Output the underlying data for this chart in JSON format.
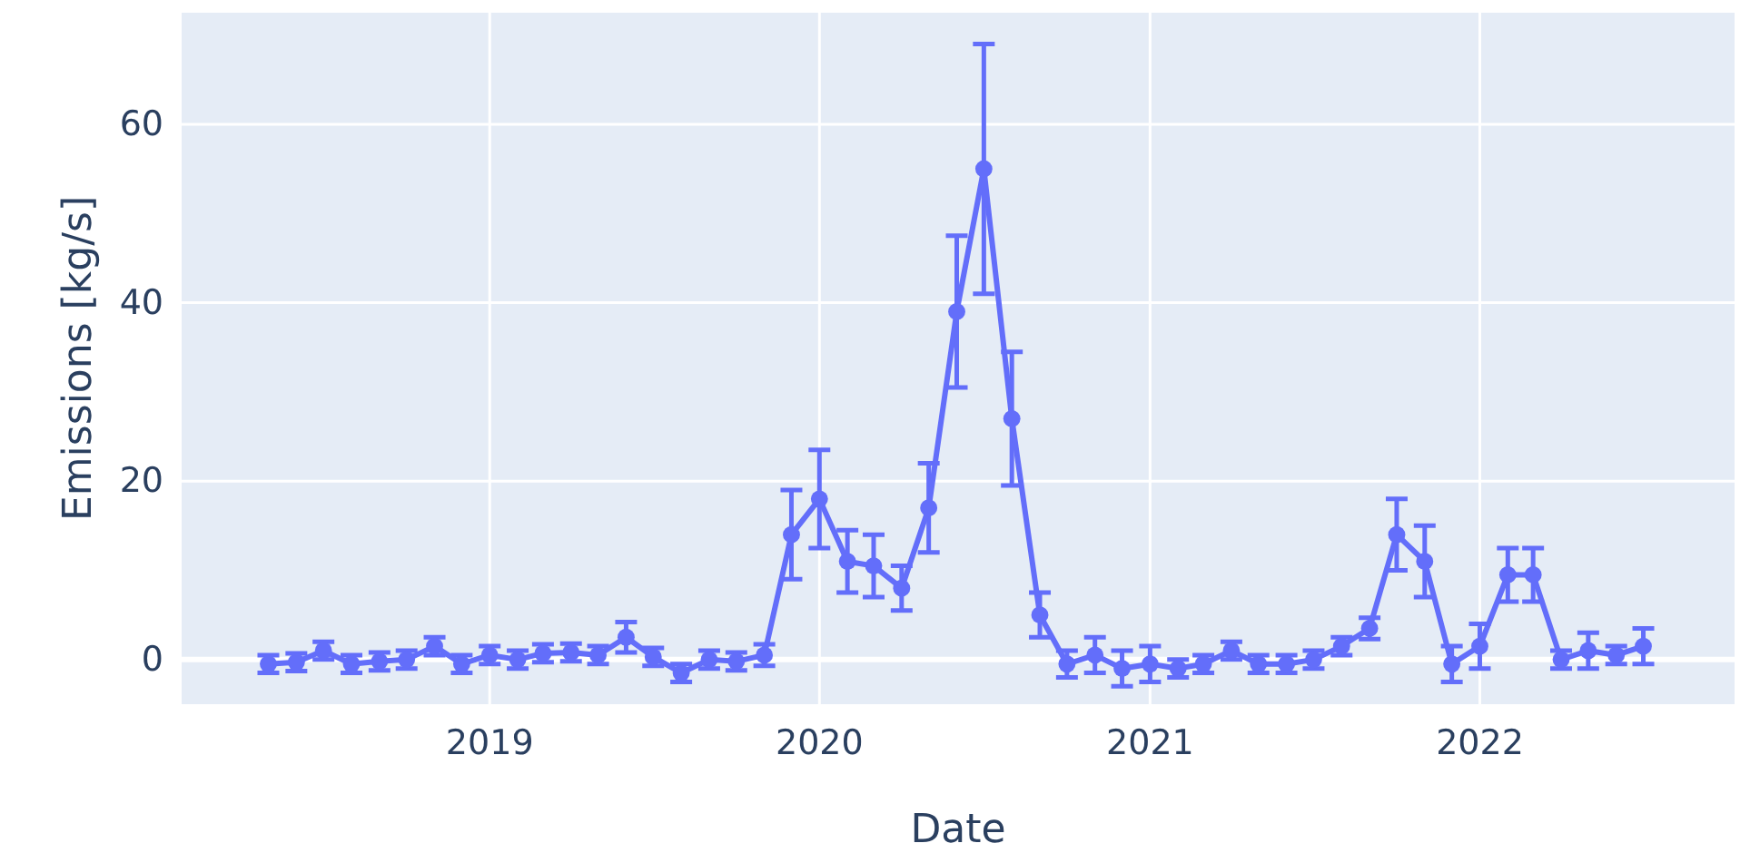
{
  "chart_data": {
    "type": "line",
    "xlabel": "Date",
    "ylabel": "Emissions [kg/s]",
    "marker": "circle",
    "line_style": "solid",
    "grid": true,
    "x": [
      "2018-05",
      "2018-06",
      "2018-07",
      "2018-08",
      "2018-09",
      "2018-10",
      "2018-11",
      "2018-12",
      "2019-01",
      "2019-02",
      "2019-03",
      "2019-04",
      "2019-05",
      "2019-06",
      "2019-07",
      "2019-08",
      "2019-09",
      "2019-10",
      "2019-11",
      "2019-12",
      "2020-01",
      "2020-02",
      "2020-03",
      "2020-04",
      "2020-05",
      "2020-06",
      "2020-07",
      "2020-08",
      "2020-09",
      "2020-10",
      "2020-11",
      "2020-12",
      "2021-01",
      "2021-02",
      "2021-03",
      "2021-04",
      "2021-05",
      "2021-06",
      "2021-07",
      "2021-08",
      "2021-09",
      "2021-10",
      "2021-11",
      "2021-12",
      "2022-01",
      "2022-02",
      "2022-03",
      "2022-04",
      "2022-05",
      "2022-06",
      "2022-07"
    ],
    "xlim": [
      "2018-01-25",
      "2022-10-10"
    ],
    "xticks": [
      {
        "value": "2019-01-01",
        "label": "2019"
      },
      {
        "value": "2020-01-01",
        "label": "2020"
      },
      {
        "value": "2021-01-01",
        "label": "2021"
      },
      {
        "value": "2022-01-01",
        "label": "2022"
      }
    ],
    "ylim": [
      -5,
      72.5
    ],
    "yticks": [
      0,
      20,
      40,
      60
    ],
    "series": [
      {
        "color": "#636efa",
        "values": [
          -0.5,
          -0.3,
          1,
          -0.5,
          -0.2,
          0,
          1.5,
          -0.5,
          0.5,
          0,
          0.7,
          0.8,
          0.5,
          2.5,
          0.3,
          -1.5,
          0,
          -0.2,
          0.5,
          14,
          18,
          11,
          10.5,
          8,
          17,
          39,
          55,
          27,
          5,
          -0.5,
          0.5,
          -1,
          -0.5,
          -1,
          -0.5,
          1,
          -0.5,
          -0.5,
          0,
          1.5,
          3.5,
          14,
          11,
          -0.5,
          1.5,
          9.5,
          9.5,
          0,
          1,
          0.5,
          1.5
        ],
        "errors": [
          1,
          1,
          1,
          1,
          1,
          1,
          1,
          1,
          1,
          1,
          1,
          1,
          1,
          1.7,
          1,
          1,
          1,
          1,
          1.2,
          5,
          5.5,
          3.5,
          3.5,
          2.5,
          5,
          8.5,
          14,
          7.5,
          2.5,
          1.5,
          2,
          2,
          2,
          1,
          1,
          1,
          1,
          1,
          1,
          1,
          1.2,
          4,
          4,
          2,
          2.5,
          3,
          3,
          1,
          2,
          1,
          2
        ]
      }
    ]
  }
}
